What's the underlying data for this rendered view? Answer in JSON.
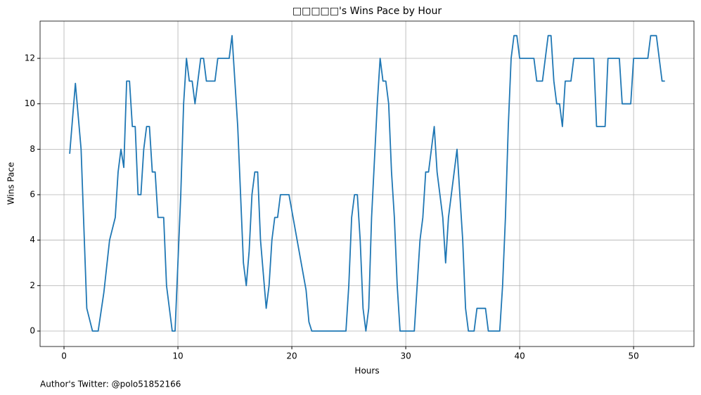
{
  "chart_data": {
    "type": "line",
    "title": "□□□□□'s Wins Pace by Hour",
    "x_label": "Hours",
    "y_label": "Wins Pace",
    "footnote": "Author's Twitter: @polo51852166",
    "color": "#1f77b4",
    "grid": true,
    "xlim": [
      -2.1,
      55.3
    ],
    "ylim": [
      -0.68,
      13.64
    ],
    "xticks": [
      0,
      10,
      20,
      30,
      40,
      50
    ],
    "yticks": [
      0,
      2,
      4,
      6,
      8,
      10,
      12
    ],
    "x": [
      0.5,
      1.0,
      1.5,
      2.0,
      2.5,
      3.0,
      3.5,
      4.0,
      4.5,
      4.75,
      5.0,
      5.25,
      5.5,
      5.75,
      6.0,
      6.25,
      6.5,
      6.75,
      7.0,
      7.25,
      7.5,
      7.75,
      8.0,
      8.25,
      8.75,
      9.0,
      9.25,
      9.5,
      9.75,
      10.25,
      10.5,
      10.75,
      11.0,
      11.25,
      11.5,
      11.75,
      12.0,
      12.25,
      12.5,
      13.25,
      13.5,
      14.5,
      14.75,
      15.25,
      15.75,
      16.0,
      16.25,
      16.5,
      16.75,
      17.0,
      17.25,
      17.75,
      18.0,
      18.25,
      18.5,
      18.75,
      19.0,
      19.75,
      21.25,
      21.5,
      21.75,
      24.75,
      25.0,
      25.25,
      25.5,
      25.75,
      26.0,
      26.25,
      26.5,
      26.75,
      27.0,
      27.5,
      27.75,
      28.0,
      28.25,
      28.5,
      28.75,
      29.0,
      29.25,
      29.5,
      30.75,
      31.25,
      31.5,
      31.75,
      32.0,
      32.5,
      32.75,
      33.25,
      33.5,
      33.75,
      34.5,
      35.0,
      35.25,
      35.5,
      36.0,
      36.25,
      37.0,
      37.25,
      38.25,
      38.5,
      38.75,
      39.0,
      39.25,
      39.5,
      39.75,
      40.0,
      41.25,
      41.5,
      42.0,
      42.5,
      42.75,
      43.0,
      43.25,
      43.5,
      43.75,
      44.0,
      44.5,
      44.75,
      46.5,
      46.75,
      47.5,
      47.75,
      48.75,
      49.0,
      49.75,
      50.0,
      51.25,
      51.5,
      52.0,
      52.5,
      52.75
    ],
    "values": [
      7.8,
      10.9,
      8,
      1,
      0,
      0,
      1.7,
      4,
      5,
      7,
      8,
      7.2,
      11,
      11,
      9,
      9,
      6,
      6,
      8,
      9,
      9,
      7,
      7,
      5,
      5,
      2,
      1,
      0,
      0,
      6,
      10,
      12,
      11,
      11,
      10,
      11,
      12,
      12,
      11,
      11,
      12,
      12,
      13,
      9,
      3,
      2,
      3.5,
      6,
      7,
      7,
      4,
      1,
      2,
      4,
      5,
      5,
      6,
      6,
      1.8,
      0.4,
      0,
      0,
      2,
      5,
      6,
      6,
      4,
      1,
      0,
      1,
      5,
      10,
      12,
      11,
      11,
      10,
      7,
      5,
      2,
      0,
      0,
      4,
      5,
      7,
      7,
      9,
      7,
      5,
      3,
      5,
      8,
      4,
      1,
      0,
      0,
      1,
      1,
      0,
      0,
      2,
      5,
      9,
      12,
      13,
      13,
      12,
      12,
      11,
      11,
      13,
      13,
      11,
      10,
      10,
      9,
      11,
      11,
      12,
      12,
      9,
      9,
      12,
      12,
      10,
      10,
      12,
      12,
      13,
      13,
      11,
      11
    ]
  }
}
